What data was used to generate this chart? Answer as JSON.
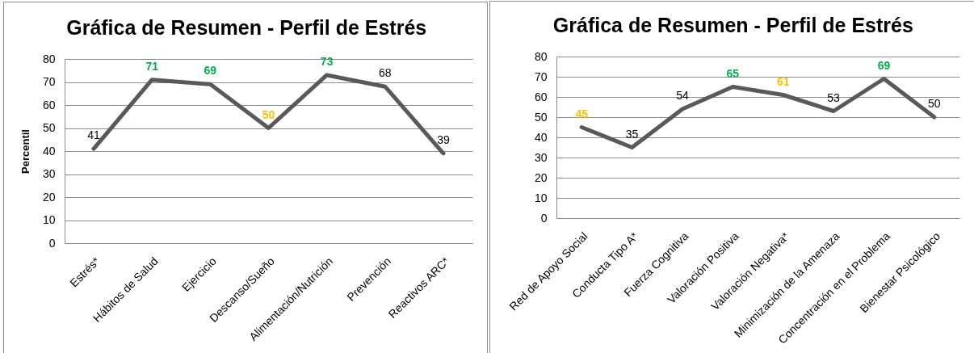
{
  "chart_data": [
    {
      "type": "line",
      "title": "Gráfica de Resumen - Perfil de Estrés",
      "ylabel": "Percentil",
      "categories": [
        "Estrés*",
        "Hábitos de Salud",
        "Ejercicio",
        "Descanso/Sueño",
        "Alimentación/Nutrición",
        "Prevención",
        "Reactivos ARC*"
      ],
      "series": [
        {
          "color": "#595959",
          "values": [
            41,
            71,
            69,
            50,
            73,
            68,
            39
          ]
        }
      ],
      "colors": [
        "#000000",
        "#00b050",
        "#00b050",
        "#ffc000",
        "#00b050",
        "#000000",
        "#000000"
      ],
      "data_labels": true,
      "ylim": [
        0,
        80
      ],
      "yticks": [
        0,
        10,
        20,
        30,
        40,
        50,
        60,
        70,
        80
      ],
      "grid": "y"
    },
    {
      "type": "line",
      "title": "Gráfica de Resumen - Perfil de Estrés",
      "categories": [
        "Red de Apoyo Social",
        "Conducta Tipo A*",
        "Fuerza Cognitiva",
        "Valoración Positiva",
        "Valoración Negativa*",
        "Minimización de la Amenaza",
        "Concentración en el Problema",
        "Bienestar Psicológico"
      ],
      "series": [
        {
          "color": "#595959",
          "values": [
            45,
            35,
            54,
            65,
            61,
            53,
            69,
            50
          ]
        }
      ],
      "colors": [
        "#ffc000",
        "#000000",
        "#000000",
        "#00b050",
        "#ffc000",
        "#000000",
        "#00b050",
        "#000000"
      ],
      "data_labels": true,
      "ylim": [
        0,
        80
      ],
      "yticks": [
        0,
        10,
        20,
        30,
        40,
        50,
        60,
        70,
        80
      ],
      "grid": "y"
    }
  ]
}
